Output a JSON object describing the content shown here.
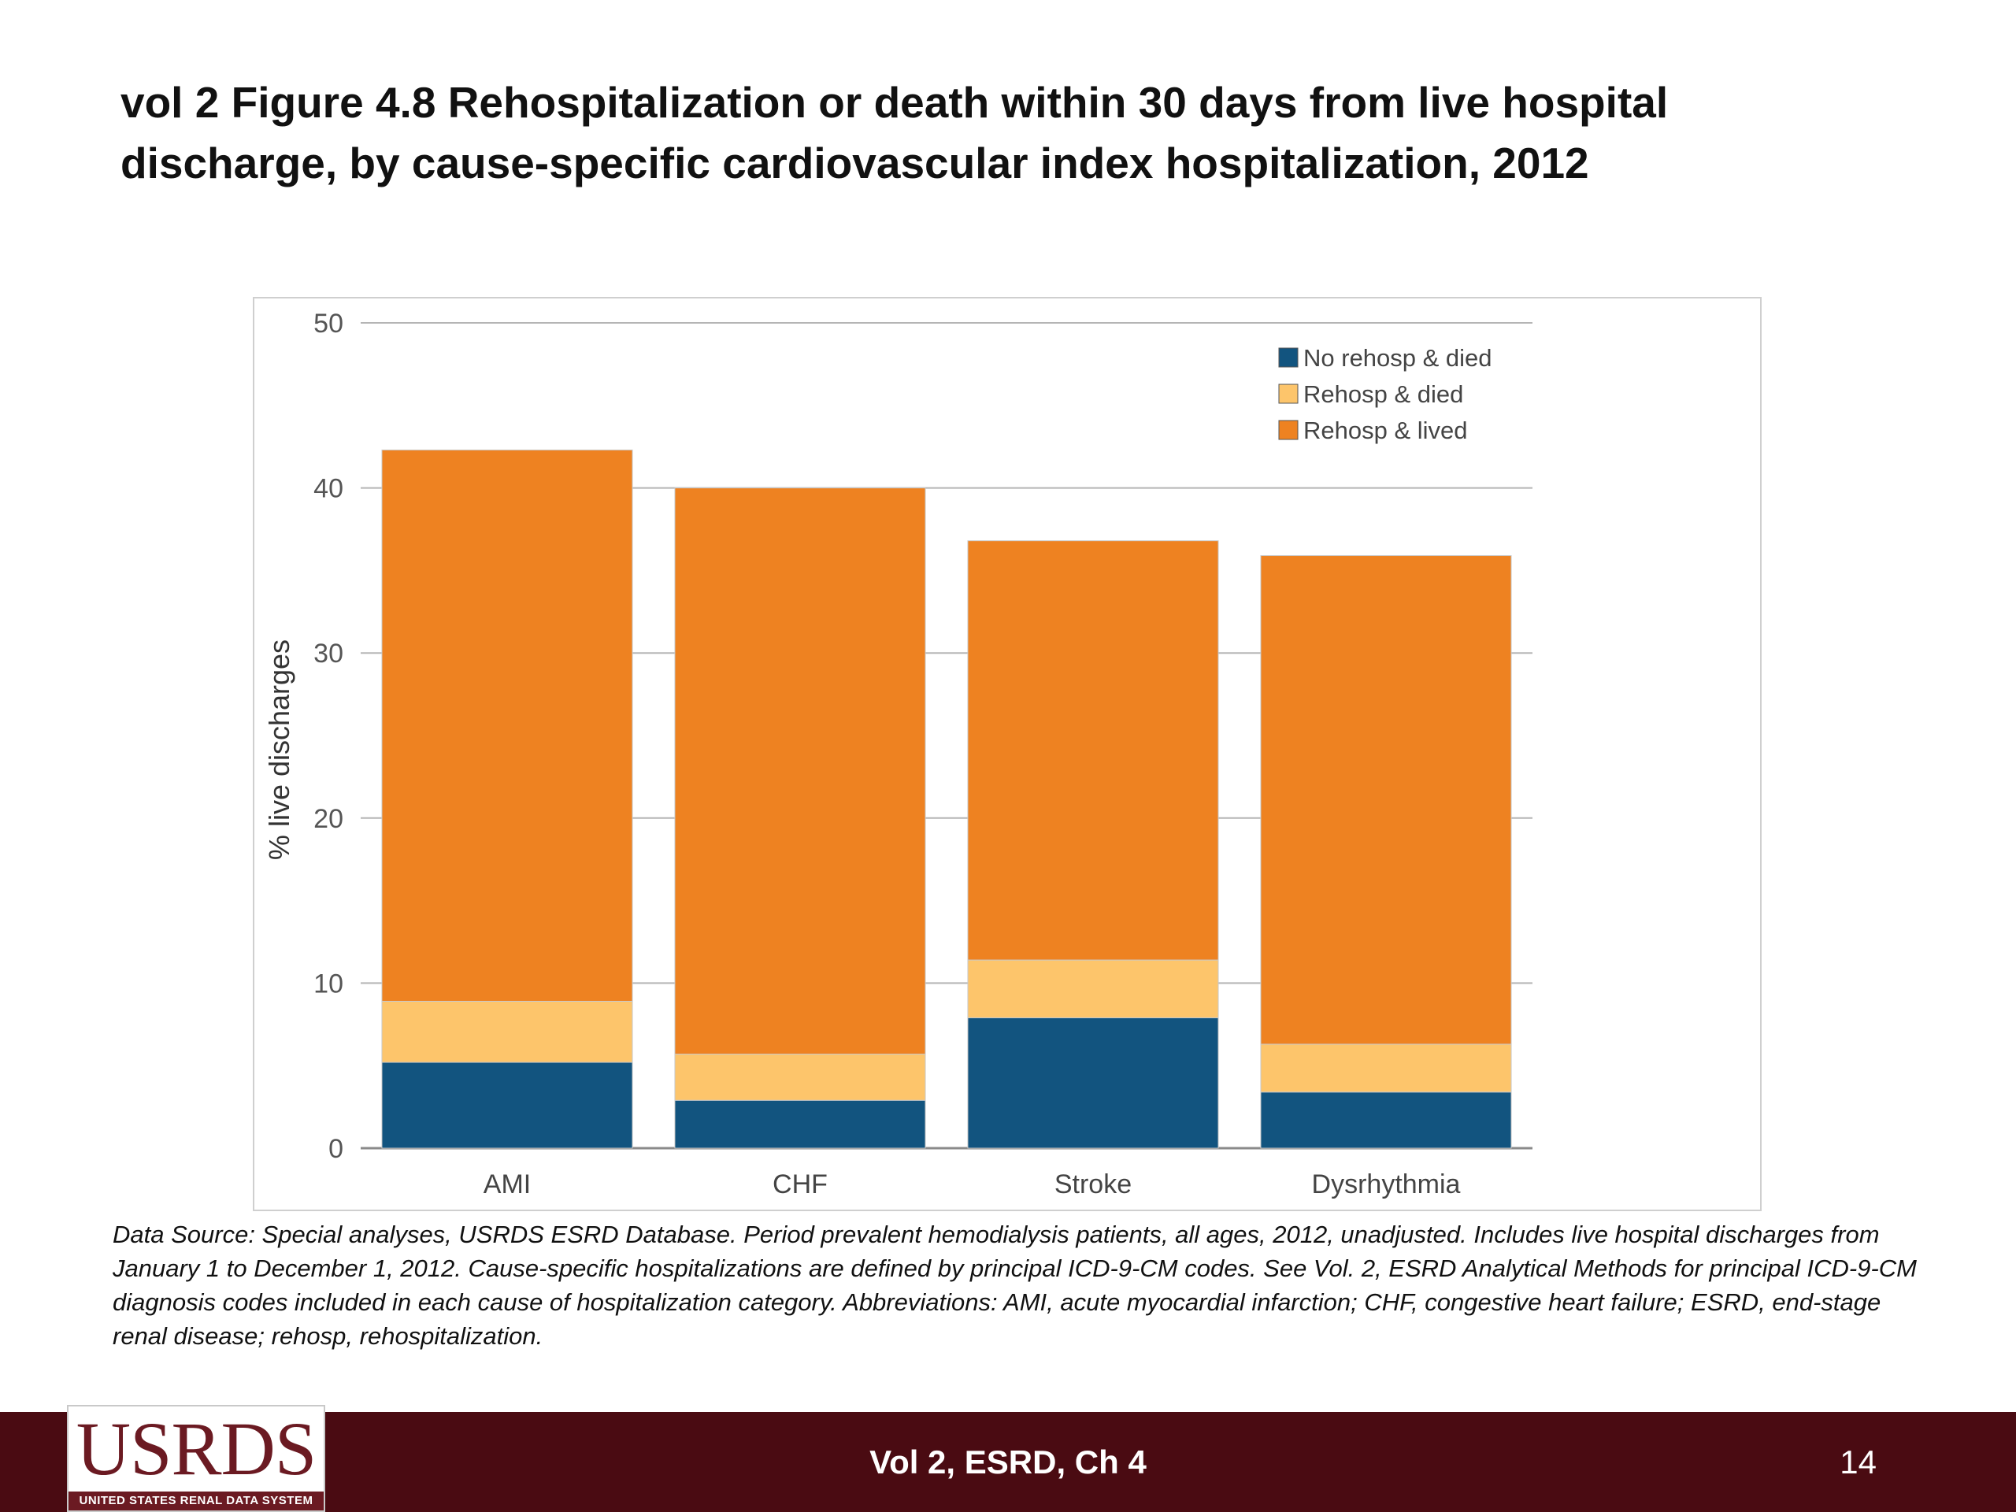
{
  "slide": {
    "title": "vol 2 Figure 4.8 Rehospitalization or death within 30 days from live hospital discharge, by cause-specific cardiovascular index hospitalization, 2012",
    "source_note": "Data Source: Special analyses, USRDS ESRD Database. Period prevalent hemodialysis patients, all ages, 2012, unadjusted. Includes live hospital discharges from January 1 to December 1, 2012. Cause-specific hospitalizations are defined by principal ICD-9-CM codes. See Vol. 2, ESRD Analytical Methods for principal ICD-9-CM diagnosis codes included in each cause of hospitalization category. Abbreviations: AMI, acute myocardial infarction; CHF, congestive heart failure; ESRD, end-stage renal disease; rehosp, rehospitalization."
  },
  "footer": {
    "center_text": "Vol 2, ESRD, Ch 4",
    "page_number": "14",
    "background_color": "#4a0b12"
  },
  "logo": {
    "text": "USRDS",
    "subtext": "UNITED STATES RENAL DATA SYSTEM"
  },
  "chart_data": {
    "type": "bar",
    "stacked": true,
    "categories": [
      "AMI",
      "CHF",
      "Stroke",
      "Dysrhythmia"
    ],
    "series": [
      {
        "name": "No rehosp & died",
        "color": "#12547f",
        "values": [
          5.2,
          2.9,
          7.9,
          3.4
        ]
      },
      {
        "name": "Rehosp & died",
        "color": "#fdc56b",
        "values": [
          3.7,
          2.8,
          3.5,
          2.9
        ]
      },
      {
        "name": "Rehosp & lived",
        "color": "#ee8221",
        "values": [
          33.4,
          34.3,
          25.4,
          29.6
        ]
      }
    ],
    "title": "",
    "xlabel": "",
    "ylabel": "% live discharges",
    "ylim": [
      0,
      50
    ],
    "yticks": [
      0,
      10,
      20,
      30,
      40,
      50
    ],
    "grid": true,
    "legend_position": "top-right"
  }
}
